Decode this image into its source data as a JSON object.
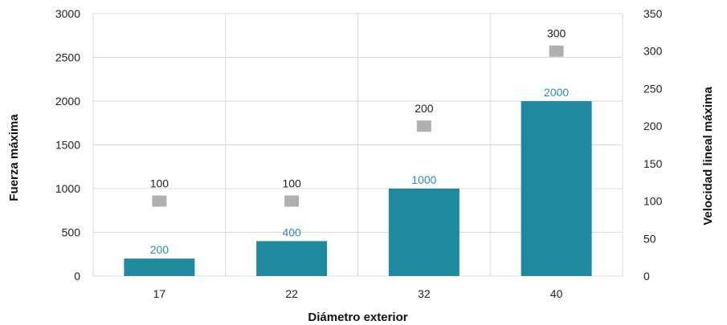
{
  "chart_data": {
    "type": "bar",
    "categories": [
      "17",
      "22",
      "32",
      "40"
    ],
    "xlabel": "Diámetro exterior",
    "ylabel": "Fuerza máxima",
    "y2label": "Velocidad lineal máxima",
    "ylim": [
      0,
      3000
    ],
    "y_ticks": [
      0,
      500,
      1000,
      1500,
      2000,
      2500,
      3000
    ],
    "y2lim": [
      0,
      350
    ],
    "y2_ticks": [
      0,
      50,
      100,
      150,
      200,
      250,
      300,
      350
    ],
    "grid": true,
    "series": [
      {
        "type": "bar",
        "axis": "left",
        "values": [
          200,
          400,
          1000,
          2000
        ],
        "labels": [
          "200",
          "400",
          "1000",
          "2000"
        ],
        "color": "#1f8a9e",
        "label_color": "#2a8ca6"
      },
      {
        "type": "scatter",
        "axis": "right",
        "values": [
          100,
          100,
          200,
          300
        ],
        "labels": [
          "100",
          "100",
          "200",
          "300"
        ],
        "color": "#b0b0b0"
      }
    ]
  }
}
